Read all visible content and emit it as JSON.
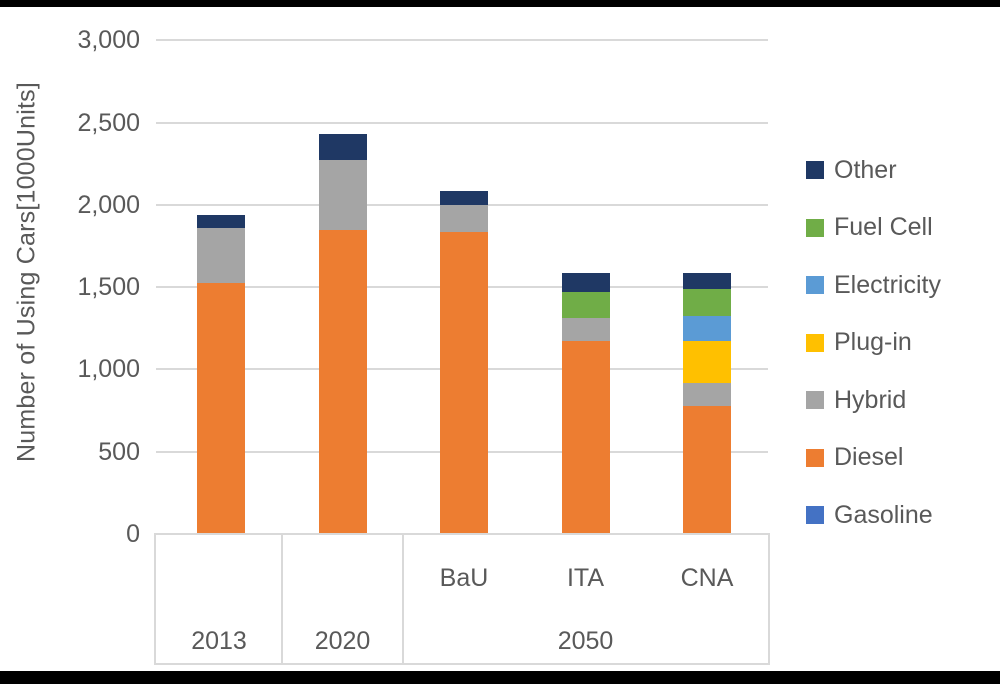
{
  "y_axis": {
    "title": "Number of Using Cars[1000Units]",
    "ticks": [
      {
        "label": "3,000",
        "value": 3000
      },
      {
        "label": "2,500",
        "value": 2500
      },
      {
        "label": "2,000",
        "value": 2000
      },
      {
        "label": "1,500",
        "value": 1500
      },
      {
        "label": "1,000",
        "value": 1000
      },
      {
        "label": "500",
        "value": 500
      },
      {
        "label": "0",
        "value": 0
      }
    ]
  },
  "x_axis": {
    "scenario_labels": [
      "BaU",
      "ITA",
      "CNA"
    ],
    "year_labels": [
      "2013",
      "2020",
      "2050"
    ]
  },
  "colors": {
    "text": "#595959",
    "gridline": "#d9d9d9",
    "frame": "#000000"
  },
  "chart_data": {
    "type": "bar",
    "stacked": true,
    "ylabel": "Number of Using Cars[1000Units]",
    "ylim": [
      0,
      3000
    ],
    "grid": true,
    "legend_position": "right",
    "categories": [
      "2013",
      "2020",
      "2050 BaU",
      "2050 ITA",
      "2050 CNA"
    ],
    "series": [
      {
        "name": "Gasoline",
        "color": "#4472c4",
        "values": [
          0,
          0,
          0,
          0,
          0
        ]
      },
      {
        "name": "Diesel",
        "color": "#ed7d31",
        "values": [
          1525,
          1845,
          1835,
          1170,
          780
        ]
      },
      {
        "name": "Hybrid",
        "color": "#a5a5a5",
        "values": [
          335,
          430,
          165,
          145,
          140
        ]
      },
      {
        "name": "Plug-in",
        "color": "#ffc000",
        "values": [
          0,
          0,
          0,
          0,
          255
        ]
      },
      {
        "name": "Electricity",
        "color": "#5b9bd5",
        "values": [
          0,
          0,
          0,
          0,
          150
        ]
      },
      {
        "name": "Fuel Cell",
        "color": "#70ad47",
        "values": [
          0,
          0,
          0,
          155,
          165
        ]
      },
      {
        "name": "Other",
        "color": "#1f3864",
        "values": [
          80,
          155,
          85,
          115,
          95
        ]
      }
    ],
    "totals": [
      1940,
      2430,
      2085,
      1585,
      1585
    ],
    "legend_order_top_to_bottom": [
      "Other",
      "Fuel Cell",
      "Electricity",
      "Plug-in",
      "Hybrid",
      "Diesel",
      "Gasoline"
    ]
  }
}
